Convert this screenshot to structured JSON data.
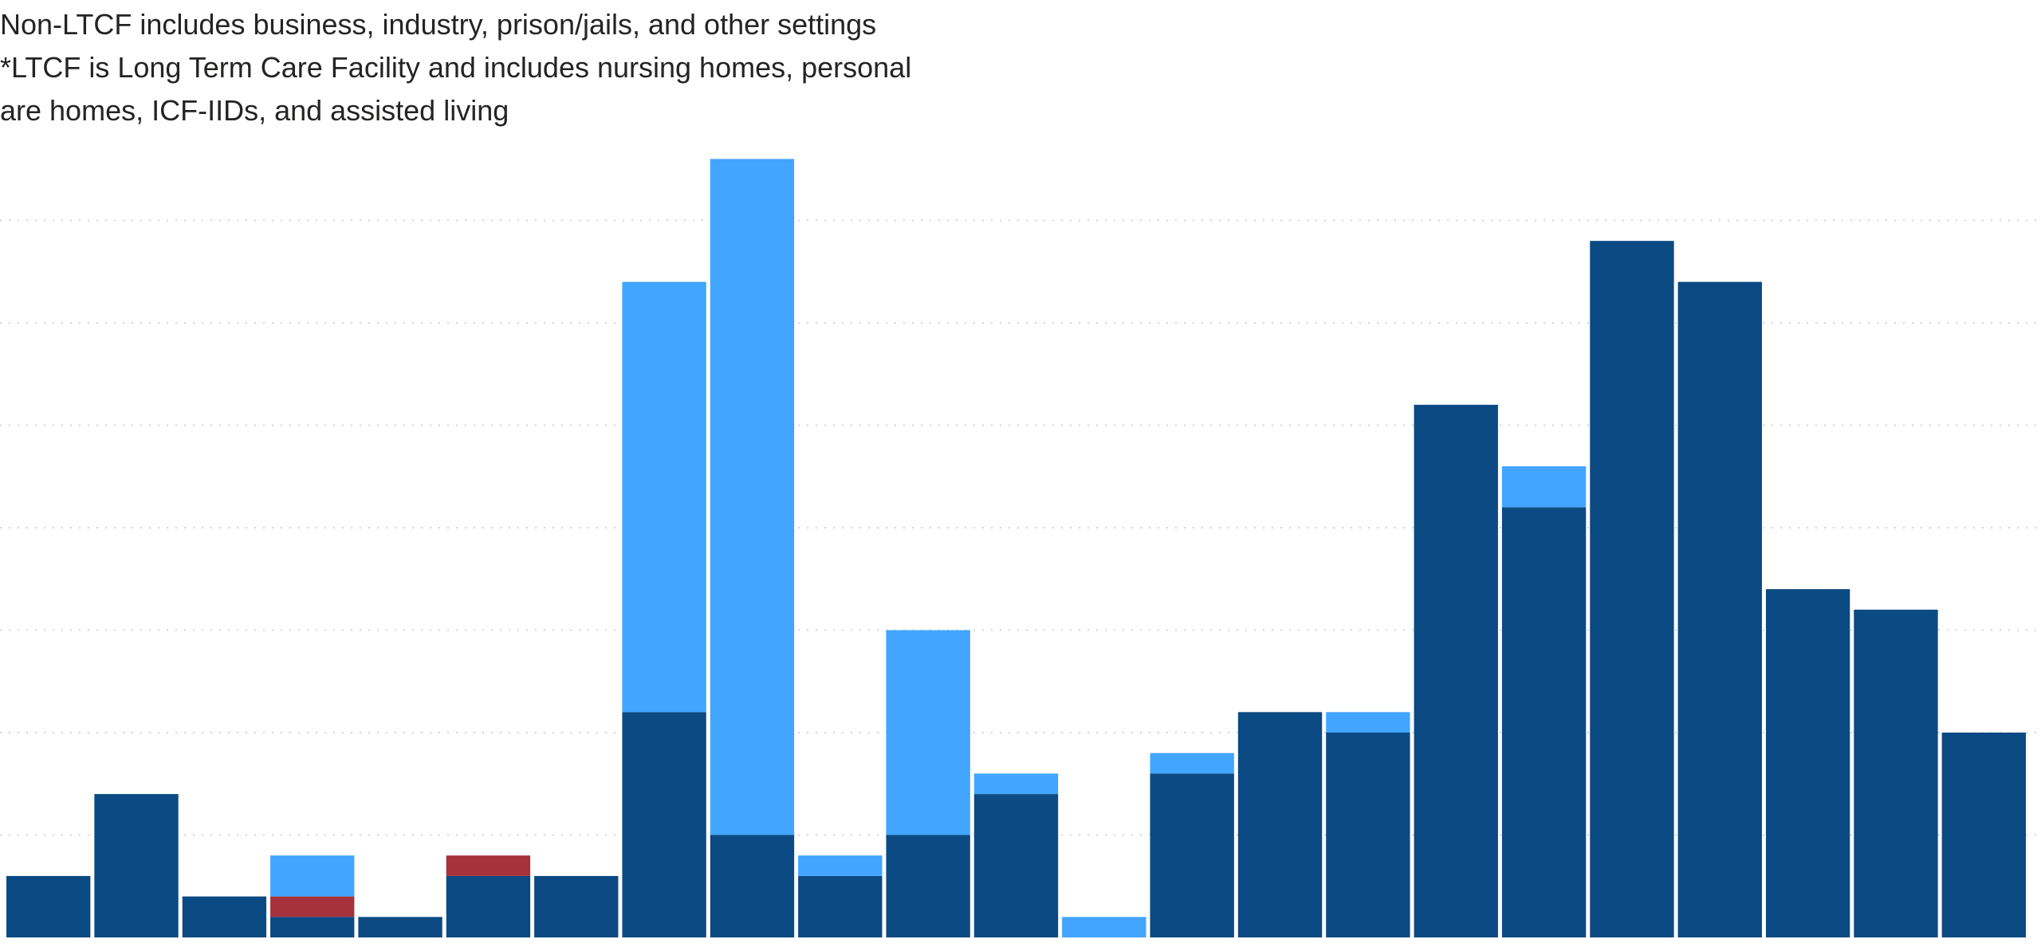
{
  "notes": [
    "Non-LTCF includes business, industry, prison/jails, and other settings",
    "*LTCF is Long Term Care Facility and includes nursing homes, personal",
    "are homes, ICF-IIDs, and assisted living"
  ],
  "chart_data": {
    "type": "bar",
    "stacked": true,
    "title": "",
    "xlabel": "",
    "ylabel": "",
    "ylim": [
      0,
      38
    ],
    "grid": true,
    "categories": [
      "",
      "",
      "",
      "",
      "",
      "",
      "",
      "",
      "",
      "",
      "",
      "",
      "",
      "",
      "",
      "",
      "",
      "",
      "",
      "",
      "",
      "",
      ""
    ],
    "series": [
      {
        "color": "#0b4a82",
        "values": [
          3,
          7,
          2,
          1,
          1,
          3,
          3,
          11,
          5,
          3,
          5,
          7,
          0,
          8,
          11,
          10,
          26,
          21,
          34,
          32,
          17,
          16,
          10
        ]
      },
      {
        "color": "#a5323d",
        "values": [
          0,
          0,
          0,
          1,
          0,
          1,
          0,
          0,
          0,
          0,
          0,
          0,
          0,
          0,
          0,
          0,
          0,
          0,
          0,
          0,
          0,
          0,
          0
        ]
      },
      {
        "color": "#42a5ff",
        "values": [
          0,
          0,
          0,
          2,
          0,
          0,
          0,
          21,
          33,
          1,
          10,
          1,
          1,
          1,
          0,
          1,
          0,
          2,
          0,
          0,
          0,
          0,
          0
        ]
      }
    ]
  },
  "colors": {
    "grid": "#d4d4d4",
    "text": "#252423"
  }
}
